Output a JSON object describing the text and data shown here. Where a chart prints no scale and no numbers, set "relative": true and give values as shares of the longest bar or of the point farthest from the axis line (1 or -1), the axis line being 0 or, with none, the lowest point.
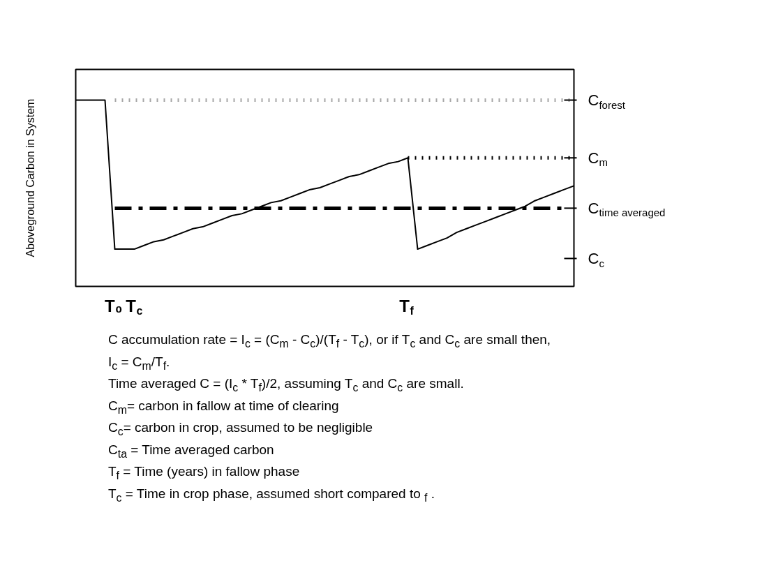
{
  "chart_data": {
    "type": "line",
    "relative": true,
    "ylabel": "Aboveground Carbon in System",
    "categories": [
      null,
      null,
      null,
      null,
      "T₀",
      null,
      "T$_{c}$",
      null,
      null,
      null,
      null,
      null,
      null,
      null,
      null,
      null,
      null,
      null,
      null,
      null,
      null,
      null,
      null,
      null,
      null,
      null,
      null,
      null,
      null,
      null,
      null,
      null,
      null,
      null,
      "T$_{f}$",
      null,
      null,
      null,
      null,
      null,
      null,
      null,
      null,
      null,
      null,
      null,
      null,
      null,
      null,
      null,
      null,
      null
    ],
    "series": [
      {
        "color": "#000000",
        "line_style": "solid",
        "values": [
          1,
          1,
          1,
          1,
          0.2,
          0.2,
          0.2,
          0.22,
          0.24,
          0.25,
          0.27,
          0.29,
          0.31,
          0.32,
          0.34,
          0.36,
          0.38,
          0.39,
          0.41,
          0.43,
          0.45,
          0.46,
          0.48,
          0.5,
          0.52,
          0.53,
          0.55,
          0.57,
          0.59,
          0.6,
          0.62,
          0.64,
          0.66,
          0.67,
          0.69,
          0.2,
          0.22,
          0.24,
          0.26,
          0.29,
          0.31,
          0.33,
          0.35,
          0.37,
          0.39,
          0.41,
          0.43,
          0.46,
          0.48,
          0.5,
          0.52,
          0.54
        ]
      },
      {
        "color": "#a6a6a6",
        "line_style": "dotted",
        "values": [
          null,
          null,
          null,
          null,
          1,
          1,
          1,
          1,
          1,
          1,
          1,
          1,
          1,
          1,
          1,
          1,
          1,
          1,
          1,
          1,
          1,
          1,
          1,
          1,
          1,
          1,
          1,
          1,
          1,
          1,
          1,
          1,
          1,
          1,
          1,
          1,
          1,
          1,
          1,
          1,
          1,
          1,
          1,
          1,
          1,
          1,
          1,
          1,
          1,
          1,
          1,
          1
        ]
      },
      {
        "color": "#000000",
        "line_style": "dotted",
        "values": [
          null,
          null,
          null,
          null,
          null,
          null,
          null,
          null,
          null,
          null,
          null,
          null,
          null,
          null,
          null,
          null,
          null,
          null,
          null,
          null,
          null,
          null,
          null,
          null,
          null,
          null,
          null,
          null,
          null,
          null,
          null,
          null,
          null,
          null,
          0.69,
          0.69,
          0.69,
          0.69,
          0.69,
          0.69,
          0.69,
          0.69,
          0.69,
          0.69,
          0.69,
          0.69,
          0.69,
          0.69,
          0.69,
          0.69,
          0.69,
          0.69
        ]
      },
      {
        "color": "#000000",
        "line_style": "dashdot",
        "values": [
          null,
          null,
          null,
          null,
          0.42,
          0.42,
          0.42,
          0.42,
          0.42,
          0.42,
          0.42,
          0.42,
          0.42,
          0.42,
          0.42,
          0.42,
          0.42,
          0.42,
          0.42,
          0.42,
          0.42,
          0.42,
          0.42,
          0.42,
          0.42,
          0.42,
          0.42,
          0.42,
          0.42,
          0.42,
          0.42,
          0.42,
          0.42,
          0.42,
          0.42,
          0.42,
          0.42,
          0.42,
          0.42,
          0.42,
          0.42,
          0.42,
          0.42,
          0.42,
          0.42,
          0.42,
          0.42,
          0.42,
          0.42,
          0.42,
          0.42,
          null
        ]
      }
    ],
    "ref_lines": [
      {
        "axis": "y",
        "value": 1,
        "label": "C$_{forest}$"
      },
      {
        "axis": "y",
        "value": 0.69,
        "label": "C$_{m}$"
      },
      {
        "axis": "y",
        "value": 0.42,
        "label": "C$_{time averaged}$"
      },
      {
        "axis": "y",
        "value": 0.15,
        "label": "C$_{c}$"
      }
    ],
    "annotations": [
      "C accumulation rate = I$_{c}$ = (C$_{m}$ - C$_{c}$)/(T$_{f}$ - T$_{c}$), or if T$_{c}$ and C$_{c}$  are small then,",
      "I$_{c}$ = C$_{m}$/T$_{f}$.",
      "Time averaged C = (I$_{c}$ * T$_{f}$)/2, assuming T$_{c}$ and C$_{c}$ are small.",
      "C$_{m}$= carbon in fallow at time of clearing",
      "C$_{c}$= carbon in crop, assumed to be negligible",
      "C$_{ta}$ = Time averaged carbon",
      "T$_{f}$ = Time (years) in fallow phase",
      "T$_{c}$ = Time in crop phase, assumed short compared to $_{f}$ ."
    ],
    "grid": false,
    "marker": "none"
  }
}
